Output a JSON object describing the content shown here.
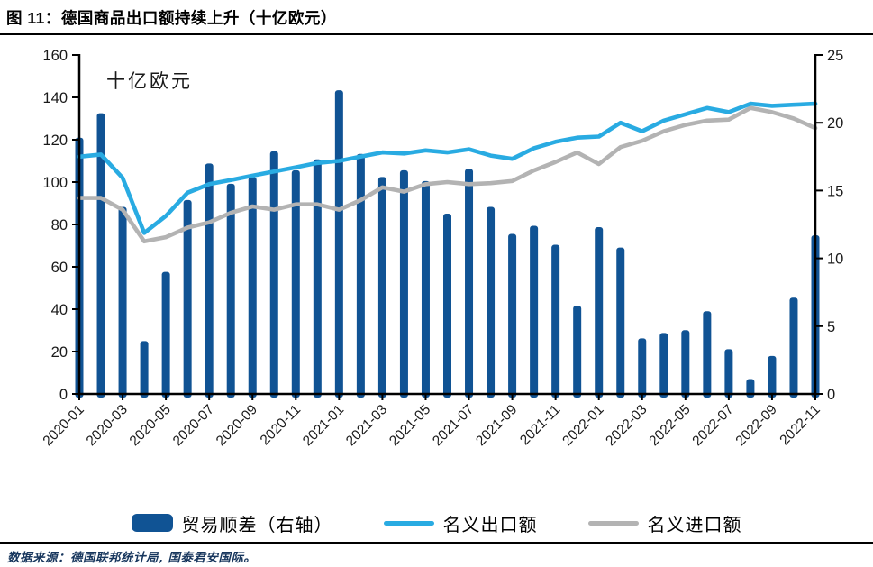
{
  "header": {
    "title": "图 11：德国商品出口额持续上升（十亿欧元）"
  },
  "chart_data": {
    "type": "combo-bar-line",
    "unit_annotation": "十亿欧元",
    "legend_position": "bottom",
    "categories": [
      "2020-01",
      "2020-02",
      "2020-03",
      "2020-04",
      "2020-05",
      "2020-06",
      "2020-07",
      "2020-08",
      "2020-09",
      "2020-10",
      "2020-11",
      "2020-12",
      "2021-01",
      "2021-02",
      "2021-03",
      "2021-04",
      "2021-05",
      "2021-06",
      "2021-07",
      "2021-08",
      "2021-09",
      "2021-10",
      "2021-11",
      "2021-12",
      "2022-01",
      "2022-02",
      "2022-03",
      "2022-04",
      "2022-05",
      "2022-06",
      "2022-07",
      "2022-08",
      "2022-09",
      "2022-10",
      "2022-11"
    ],
    "x_tick_labels": [
      "2020-01",
      "2020-03",
      "2020-05",
      "2020-07",
      "2020-09",
      "2020-11",
      "2021-01",
      "2021-03",
      "2021-05",
      "2021-07",
      "2021-09",
      "2021-11",
      "2022-01",
      "2022-03",
      "2022-05",
      "2022-07",
      "2022-09",
      "2022-11"
    ],
    "left_axis": {
      "min": 0,
      "max": 160,
      "step": 20
    },
    "right_axis": {
      "min": 0,
      "max": 25,
      "step": 5
    },
    "axis_color": "#000000",
    "series": [
      {
        "name": "贸易顺差（右轴）",
        "type": "bar",
        "axis": "right",
        "color": "#105394",
        "values": [
          18.9,
          20.7,
          13.8,
          3.9,
          9.0,
          14.3,
          17.0,
          15.5,
          16.0,
          17.9,
          16.5,
          17.3,
          22.4,
          17.7,
          16.0,
          16.5,
          15.7,
          13.3,
          16.6,
          13.8,
          11.8,
          12.4,
          11.0,
          6.5,
          12.3,
          10.8,
          4.1,
          4.5,
          4.7,
          6.1,
          3.3,
          1.1,
          2.8,
          7.1,
          11.7
        ]
      },
      {
        "name": "名义出口额",
        "type": "line",
        "axis": "left",
        "color": "#29ABE2",
        "values": [
          112,
          113,
          102,
          76,
          84,
          95,
          99,
          101,
          103,
          105,
          107,
          109,
          110,
          112,
          114,
          113.5,
          115,
          114,
          115.5,
          112.5,
          111,
          116,
          119,
          121,
          121.5,
          128,
          124,
          129,
          132,
          135,
          133,
          137,
          136,
          136.5,
          137
        ]
      },
      {
        "name": "名义进口额",
        "type": "line",
        "axis": "left",
        "color": "#B3B3B3",
        "values": [
          92.5,
          92.5,
          87,
          72,
          74,
          78.5,
          81,
          85.5,
          88.5,
          87,
          89.5,
          89.5,
          87,
          91.5,
          97.5,
          95.5,
          99,
          100,
          99,
          99.5,
          100.5,
          105.5,
          109.5,
          114,
          108.5,
          116.5,
          119.5,
          124,
          127,
          129,
          129.5,
          135,
          133,
          130,
          125.5
        ]
      }
    ]
  },
  "footer": {
    "source": "数据来源：德国联邦统计局, 国泰君安国际。"
  }
}
